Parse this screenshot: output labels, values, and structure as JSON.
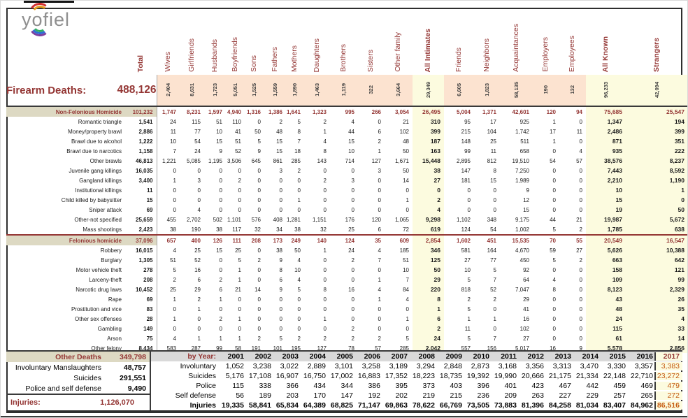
{
  "logo": {
    "text_y": "y",
    "text_o": "o",
    "text_rest": "fiel"
  },
  "header": {
    "total_label": "Total",
    "firearm_deaths_label": "Firearm Deaths:",
    "firearm_deaths_total": "488,126",
    "columns": [
      {
        "label": "Wives",
        "total": "2,404",
        "kind": "rel"
      },
      {
        "label": "Girlfriends",
        "total": "8,631",
        "kind": "rel"
      },
      {
        "label": "Husbands",
        "total": "1,723",
        "kind": "rel"
      },
      {
        "label": "Boyfriends",
        "total": "5,051",
        "kind": "rel"
      },
      {
        "label": "Sons",
        "total": "1,525",
        "kind": "rel"
      },
      {
        "label": "Fathers",
        "total": "1,559",
        "kind": "rel"
      },
      {
        "label": "Mothers",
        "total": "1,890",
        "kind": "rel"
      },
      {
        "label": "Daughters",
        "total": "1,463",
        "kind": "rel"
      },
      {
        "label": "Brothers",
        "total": "1,119",
        "kind": "rel"
      },
      {
        "label": "Sisters",
        "total": "322",
        "kind": "rel"
      },
      {
        "label": "Other family",
        "total": "3,664",
        "kind": "rel"
      },
      {
        "label": "All Intimates",
        "total": "29,349",
        "kind": "sum"
      },
      {
        "label": "Friends",
        "total": "6,605",
        "kind": "rel"
      },
      {
        "label": "Neighbors",
        "total": "1,823",
        "kind": "rel"
      },
      {
        "label": "Acquaintances",
        "total": "58,135",
        "kind": "rel"
      },
      {
        "label": "Employers",
        "total": "190",
        "kind": "rel"
      },
      {
        "label": "Employees",
        "total": "132",
        "kind": "rel"
      },
      {
        "label": "All Known",
        "total": "96,233",
        "kind": "sum"
      },
      {
        "label": "Strangers",
        "total": "42,094",
        "kind": "sum"
      }
    ]
  },
  "matrix": {
    "rows": [
      {
        "label": "Non-Felonious Homicide",
        "total": "101,232",
        "type": "section",
        "values": [
          "1,747",
          "8,231",
          "1,597",
          "4,940",
          "1,316",
          "1,386",
          "1,641",
          "1,323",
          "995",
          "266",
          "3,054",
          "26,495",
          "5,004",
          "1,371",
          "42,601",
          "120",
          "94",
          "75,685",
          "25,547"
        ]
      },
      {
        "label": "Romantic triangle",
        "total": "1,541",
        "type": "data",
        "values": [
          "24",
          "115",
          "51",
          "110",
          "0",
          "2",
          "5",
          "2",
          "4",
          "0",
          "21",
          "310",
          "95",
          "17",
          "925",
          "1",
          "0",
          "1,347",
          "194"
        ]
      },
      {
        "label": "Money/property brawl",
        "total": "2,886",
        "type": "data",
        "values": [
          "11",
          "77",
          "10",
          "41",
          "50",
          "48",
          "8",
          "1",
          "44",
          "6",
          "102",
          "399",
          "215",
          "104",
          "1,742",
          "17",
          "11",
          "2,486",
          "399"
        ]
      },
      {
        "label": "Brawl due to alcohol",
        "total": "1,222",
        "type": "data",
        "values": [
          "10",
          "54",
          "15",
          "51",
          "5",
          "15",
          "7",
          "4",
          "15",
          "2",
          "48",
          "187",
          "148",
          "25",
          "511",
          "1",
          "0",
          "871",
          "351"
        ]
      },
      {
        "label": "Brawl due to narcotics",
        "total": "1,158",
        "type": "data",
        "values": [
          "7",
          "24",
          "9",
          "52",
          "9",
          "15",
          "18",
          "8",
          "10",
          "1",
          "50",
          "163",
          "99",
          "11",
          "658",
          "0",
          "4",
          "935",
          "222"
        ]
      },
      {
        "label": "Other brawls",
        "total": "46,813",
        "type": "data",
        "values": [
          "1,221",
          "5,085",
          "1,195",
          "3,506",
          "645",
          "861",
          "285",
          "143",
          "714",
          "127",
          "1,671",
          "15,448",
          "2,895",
          "812",
          "19,510",
          "54",
          "57",
          "38,576",
          "8,237"
        ]
      },
      {
        "label": "Juvenile gang killings",
        "total": "16,035",
        "type": "data",
        "values": [
          "0",
          "0",
          "0",
          "0",
          "0",
          "3",
          "2",
          "0",
          "0",
          "3",
          "50",
          "38",
          "147",
          "8",
          "7,250",
          "0",
          "0",
          "7,443",
          "8,592"
        ]
      },
      {
        "label": "Gangland killings",
        "total": "3,400",
        "type": "data",
        "values": [
          "1",
          "3",
          "0",
          "2",
          "0",
          "0",
          "0",
          "2",
          "3",
          "0",
          "14",
          "27",
          "181",
          "15",
          "1,989",
          "0",
          "0",
          "2,210",
          "1,190"
        ]
      },
      {
        "label": "Institutional killings",
        "total": "11",
        "type": "data",
        "values": [
          "0",
          "0",
          "0",
          "0",
          "0",
          "0",
          "0",
          "0",
          "0",
          "0",
          "0",
          "0",
          "0",
          "0",
          "9",
          "0",
          "0",
          "10",
          "1"
        ]
      },
      {
        "label": "Child killed by babysitter",
        "total": "15",
        "type": "data",
        "values": [
          "0",
          "0",
          "0",
          "0",
          "0",
          "0",
          "1",
          "0",
          "0",
          "0",
          "1",
          "2",
          "0",
          "0",
          "12",
          "0",
          "0",
          "15",
          "0"
        ]
      },
      {
        "label": "Sniper attack",
        "total": "69",
        "type": "data",
        "values": [
          "0",
          "4",
          "0",
          "0",
          "0",
          "0",
          "0",
          "0",
          "0",
          "0",
          "0",
          "4",
          "0",
          "0",
          "15",
          "0",
          "0",
          "19",
          "50"
        ]
      },
      {
        "label": "Other-not specified",
        "total": "25,659",
        "type": "data",
        "values": [
          "455",
          "2,702",
          "502",
          "1,101",
          "576",
          "408",
          "1,281",
          "1,151",
          "176",
          "120",
          "1,065",
          "9,298",
          "1,102",
          "348",
          "9,175",
          "44",
          "21",
          "19,987",
          "5,672"
        ]
      },
      {
        "label": "Mass shootings",
        "total": "2,423",
        "type": "data",
        "values": [
          "38",
          "190",
          "38",
          "117",
          "32",
          "34",
          "38",
          "32",
          "25",
          "6",
          "72",
          "619",
          "124",
          "54",
          "1,002",
          "5",
          "2",
          "1,785",
          "638"
        ]
      },
      {
        "label": "Felonious homicide",
        "total": "37,096",
        "type": "section",
        "values": [
          "657",
          "400",
          "126",
          "111",
          "208",
          "173",
          "249",
          "140",
          "124",
          "35",
          "609",
          "2,854",
          "1,602",
          "451",
          "15,535",
          "70",
          "55",
          "20,549",
          "16,547"
        ]
      },
      {
        "label": "Robbery",
        "total": "16,015",
        "type": "data",
        "values": [
          "4",
          "25",
          "15",
          "25",
          "0",
          "38",
          "50",
          "1",
          "24",
          "4",
          "185",
          "346",
          "581",
          "164",
          "4,670",
          "59",
          "27",
          "5,626",
          "10,388"
        ]
      },
      {
        "label": "Burglary",
        "total": "1,305",
        "type": "data",
        "values": [
          "51",
          "52",
          "0",
          "5",
          "2",
          "9",
          "4",
          "0",
          "2",
          "7",
          "51",
          "125",
          "27",
          "77",
          "450",
          "5",
          "2",
          "663",
          "642"
        ]
      },
      {
        "label": "Motor vehicle theft",
        "total": "278",
        "type": "data",
        "values": [
          "5",
          "16",
          "0",
          "1",
          "0",
          "8",
          "10",
          "0",
          "0",
          "0",
          "10",
          "50",
          "10",
          "5",
          "92",
          "0",
          "0",
          "158",
          "121"
        ]
      },
      {
        "label": "Larceny-theft",
        "total": "208",
        "type": "data",
        "values": [
          "2",
          "6",
          "2",
          "1",
          "0",
          "6",
          "4",
          "0",
          "0",
          "1",
          "7",
          "29",
          "5",
          "7",
          "64",
          "4",
          "0",
          "109",
          "99"
        ]
      },
      {
        "label": "Narcotic drug laws",
        "total": "10,452",
        "type": "data",
        "values": [
          "25",
          "29",
          "6",
          "21",
          "14",
          "9",
          "5",
          "8",
          "16",
          "4",
          "84",
          "220",
          "818",
          "52",
          "7,047",
          "8",
          "0",
          "8,123",
          "2,329"
        ]
      },
      {
        "label": "Rape",
        "total": "69",
        "type": "data",
        "values": [
          "1",
          "2",
          "1",
          "0",
          "0",
          "0",
          "0",
          "0",
          "0",
          "1",
          "4",
          "8",
          "2",
          "2",
          "29",
          "0",
          "0",
          "43",
          "26"
        ]
      },
      {
        "label": "Prostitution and vice",
        "total": "83",
        "type": "data",
        "values": [
          "0",
          "1",
          "0",
          "0",
          "0",
          "0",
          "0",
          "0",
          "0",
          "0",
          "0",
          "1",
          "5",
          "0",
          "41",
          "0",
          "0",
          "48",
          "35"
        ]
      },
      {
        "label": "Other sex offenses",
        "total": "28",
        "type": "data",
        "values": [
          "1",
          "0",
          "2",
          "1",
          "0",
          "0",
          "0",
          "1",
          "0",
          "0",
          "1",
          "6",
          "1",
          "1",
          "16",
          "0",
          "0",
          "24",
          "4"
        ]
      },
      {
        "label": "Gambling",
        "total": "149",
        "type": "data",
        "values": [
          "0",
          "0",
          "0",
          "0",
          "0",
          "0",
          "0",
          "0",
          "2",
          "0",
          "0",
          "2",
          "11",
          "0",
          "102",
          "0",
          "0",
          "115",
          "33"
        ]
      },
      {
        "label": "Arson",
        "total": "75",
        "type": "data",
        "values": [
          "4",
          "1",
          "1",
          "1",
          "2",
          "5",
          "2",
          "2",
          "2",
          "2",
          "5",
          "24",
          "5",
          "7",
          "27",
          "0",
          "0",
          "61",
          "14"
        ]
      },
      {
        "label": "Other felony",
        "total": "8,434",
        "type": "data",
        "values": [
          "583",
          "287",
          "99",
          "58",
          "191",
          "101",
          "195",
          "127",
          "78",
          "57",
          "285",
          "2,042",
          "557",
          "156",
          "5,017",
          "16",
          "9",
          "5,578",
          "2,856"
        ]
      }
    ]
  },
  "bottom_left": {
    "rows": [
      {
        "label": "Other Deaths",
        "total": "349,798",
        "type": "section"
      },
      {
        "label": "Involuntary Manslaughters",
        "total": "48,757",
        "type": "data"
      },
      {
        "label": "Suicides",
        "total": "291,551",
        "type": "data"
      },
      {
        "label": "Police and self defense",
        "total": "9,490",
        "type": "data"
      }
    ],
    "injuries_label": "Injuries:",
    "injuries_total": "1,126,070"
  },
  "by_year": {
    "label": "by Year:",
    "years": [
      "2001",
      "2002",
      "2003",
      "2004",
      "2005",
      "2006",
      "2007",
      "2008",
      "2009",
      "2010",
      "2011",
      "2012",
      "2013",
      "2014",
      "2015",
      "2016",
      "2017"
    ],
    "highlight_year": "2017",
    "rows": [
      {
        "label": "Involuntary",
        "bold": false,
        "values": [
          "1,052",
          "3,238",
          "3,022",
          "2,889",
          "3,101",
          "3,258",
          "3,189",
          "3,294",
          "2,848",
          "2,873",
          "3,168",
          "3,356",
          "3,313",
          "3,470",
          "3,330",
          "3,357",
          "3,383"
        ]
      },
      {
        "label": "Suicides",
        "bold": false,
        "values": [
          "5,176",
          "17,108",
          "16,907",
          "16,750",
          "17,002",
          "16,883",
          "17,352",
          "18,223",
          "18,735",
          "19,392",
          "19,990",
          "20,666",
          "21,175",
          "21,334",
          "22,148",
          "22,710",
          "23,272"
        ]
      },
      {
        "label": "Police",
        "bold": false,
        "values": [
          "115",
          "338",
          "366",
          "434",
          "344",
          "386",
          "395",
          "373",
          "403",
          "396",
          "401",
          "423",
          "467",
          "442",
          "459",
          "469",
          "479"
        ]
      },
      {
        "label": "Self defense",
        "bold": false,
        "values": [
          "56",
          "189",
          "203",
          "170",
          "147",
          "192",
          "202",
          "219",
          "215",
          "236",
          "209",
          "263",
          "227",
          "229",
          "257",
          "265",
          "272"
        ]
      },
      {
        "label": "Injuries",
        "bold": true,
        "values": [
          "19,335",
          "58,841",
          "65,834",
          "64,389",
          "68,825",
          "71,147",
          "69,863",
          "78,622",
          "66,769",
          "73,505",
          "73,883",
          "81,396",
          "84,258",
          "81,034",
          "83,407",
          "84,962",
          "86,516"
        ]
      }
    ]
  },
  "colors": {
    "dark_red": "#943634",
    "section_bg": "#ddd9c3",
    "peach_bg": "#fce3d0",
    "yellow_bg": "#fcfbdf",
    "year_header_bg": "#d9d9d9",
    "highlight_text": "#c55a11"
  }
}
